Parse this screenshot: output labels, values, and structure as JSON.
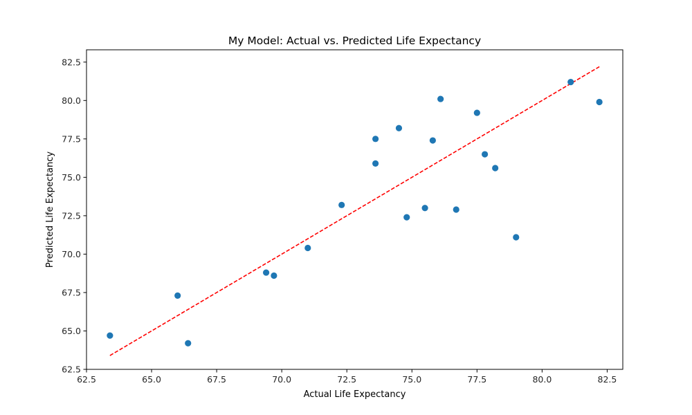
{
  "chart_data": {
    "type": "scatter",
    "title": "My Model: Actual vs. Predicted Life Expectancy",
    "xlabel": "Actual Life Expectancy",
    "ylabel": "Predicted Life Expectancy",
    "xlim": [
      62.5,
      83.1
    ],
    "ylim": [
      62.5,
      83.3
    ],
    "xticks": [
      62.5,
      65.0,
      67.5,
      70.0,
      72.5,
      75.0,
      77.5,
      80.0,
      82.5
    ],
    "yticks": [
      62.5,
      65.0,
      67.5,
      70.0,
      72.5,
      75.0,
      77.5,
      80.0,
      82.5
    ],
    "xtick_labels": [
      "62.5",
      "65.0",
      "67.5",
      "70.0",
      "72.5",
      "75.0",
      "77.5",
      "80.0",
      "82.5"
    ],
    "ytick_labels": [
      "62.5",
      "65.0",
      "67.5",
      "70.0",
      "72.5",
      "75.0",
      "77.5",
      "80.0",
      "82.5"
    ],
    "grid": false,
    "point_color": "#1f77b4",
    "line_color": "#ff0000",
    "points": [
      {
        "x": 63.4,
        "y": 64.7
      },
      {
        "x": 66.0,
        "y": 67.3
      },
      {
        "x": 66.4,
        "y": 64.2
      },
      {
        "x": 69.4,
        "y": 68.8
      },
      {
        "x": 69.7,
        "y": 68.6
      },
      {
        "x": 71.0,
        "y": 70.4
      },
      {
        "x": 72.3,
        "y": 73.2
      },
      {
        "x": 73.6,
        "y": 77.5
      },
      {
        "x": 73.6,
        "y": 75.9
      },
      {
        "x": 74.5,
        "y": 78.2
      },
      {
        "x": 74.8,
        "y": 72.4
      },
      {
        "x": 75.5,
        "y": 73.0
      },
      {
        "x": 75.8,
        "y": 77.4
      },
      {
        "x": 76.1,
        "y": 80.1
      },
      {
        "x": 76.7,
        "y": 72.9
      },
      {
        "x": 77.5,
        "y": 79.2
      },
      {
        "x": 77.8,
        "y": 76.5
      },
      {
        "x": 78.2,
        "y": 75.6
      },
      {
        "x": 79.0,
        "y": 71.1
      },
      {
        "x": 81.1,
        "y": 81.2
      },
      {
        "x": 82.2,
        "y": 79.9
      }
    ],
    "reference_line": {
      "style": "dashed",
      "x": [
        63.4,
        82.2
      ],
      "y": [
        63.4,
        82.2
      ]
    }
  }
}
